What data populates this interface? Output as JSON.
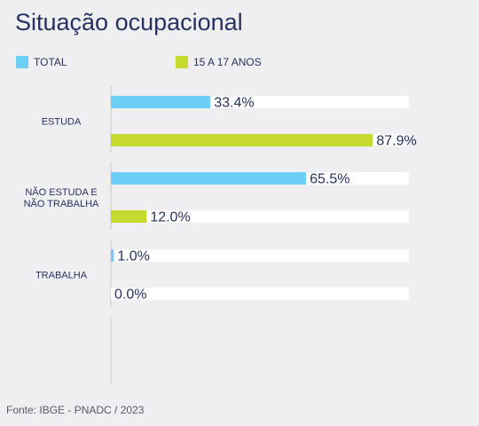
{
  "title": "Situação ocupacional",
  "source": "Fonte: IBGE - PNADC / 2023",
  "colors": {
    "total": "#6ecff6",
    "age_15_17": "#c6d92f",
    "text": "#27325e",
    "track": "#ffffff",
    "axis": "#c8c8cc",
    "background": "#efeff1"
  },
  "chart_data": {
    "type": "bar",
    "orientation": "horizontal",
    "categories": [
      [
        "ESTUDA"
      ],
      [
        "NÃO ESTUDA E",
        "NÃO TRABALHA"
      ],
      [
        "TRABALHA"
      ]
    ],
    "series": [
      {
        "name": "TOTAL",
        "values": [
          33.4,
          65.5,
          1.0
        ],
        "color": "#6ecff6"
      },
      {
        "name": "15 A 17 ANOS",
        "values": [
          87.9,
          12.0,
          0.0
        ],
        "color": "#c6d92f"
      }
    ],
    "value_labels": [
      [
        "33.4%",
        "65.5%",
        "1.0%"
      ],
      [
        "87.9%",
        "12.0%",
        "0.0%"
      ]
    ],
    "xlim": [
      0,
      100
    ],
    "unit": "%",
    "legend_position": "top-left",
    "grid": false
  }
}
